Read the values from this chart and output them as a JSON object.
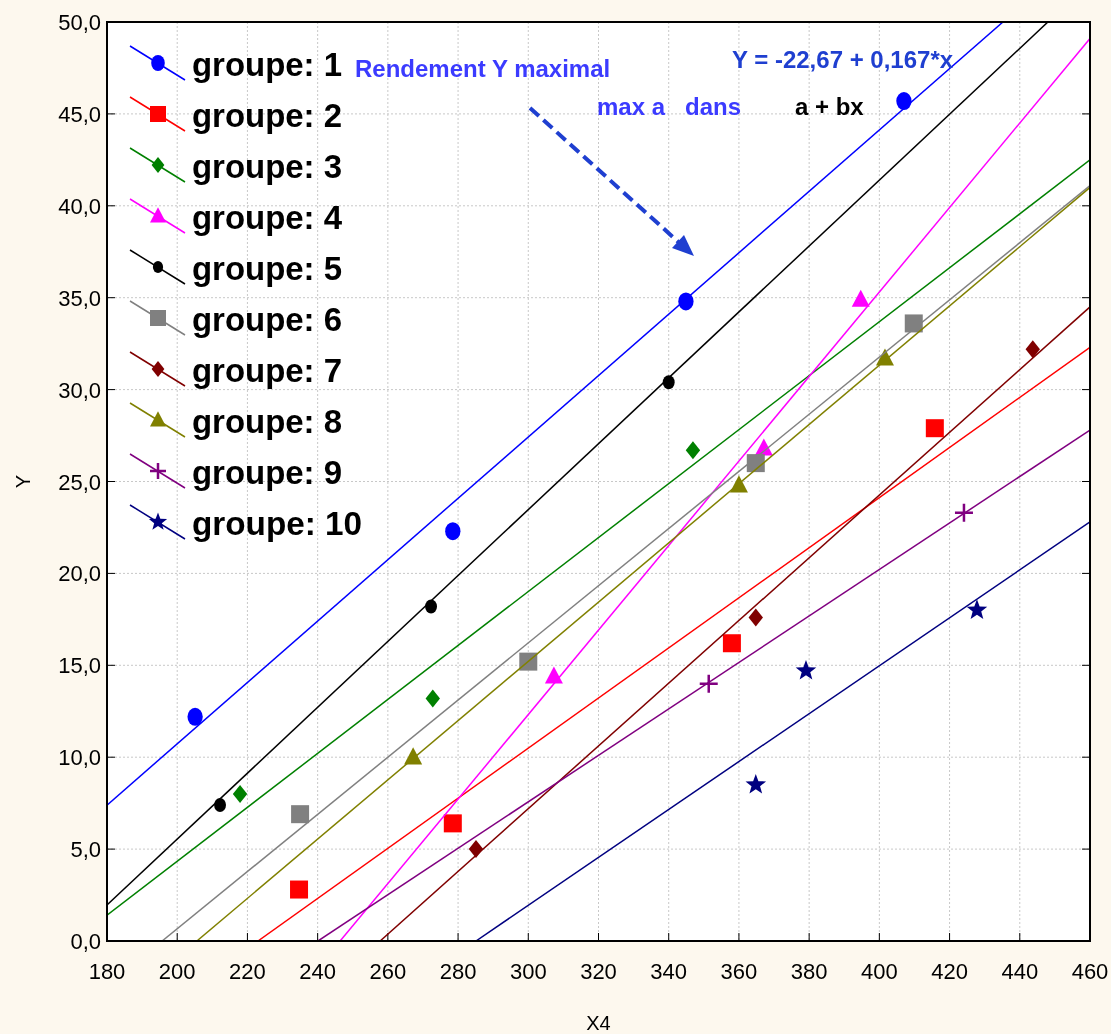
{
  "chart_data": {
    "type": "scatter",
    "xlabel": "X4",
    "ylabel": "Y",
    "xlim": [
      180,
      460
    ],
    "xticks": [
      180,
      200,
      220,
      240,
      260,
      280,
      300,
      320,
      340,
      360,
      380,
      400,
      420,
      440,
      460
    ],
    "ylim": [
      0,
      50
    ],
    "yticks": [
      {
        "value": 0,
        "label": "0,0"
      },
      {
        "value": 5,
        "label": "5,0"
      },
      {
        "value": 10,
        "label": "10,0"
      },
      {
        "value": 15,
        "label": "15,0"
      },
      {
        "value": 20,
        "label": "20,0"
      },
      {
        "value": 25,
        "label": "25,0"
      },
      {
        "value": 30,
        "label": "30,0"
      },
      {
        "value": 35,
        "label": "35,0"
      },
      {
        "value": 40,
        "label": "40,0"
      },
      {
        "value": 45,
        "label": "45,0"
      },
      {
        "value": 50,
        "label": "50,0"
      }
    ],
    "grid": true,
    "legend": "top left",
    "annotations": [
      "Rendement Y maximal",
      "Y = -22,67 + 0,167*x",
      "max a   dans",
      "a + bx"
    ],
    "series": [
      {
        "name": "groupe: 1",
        "color": "#0000ff",
        "marker": "circle",
        "x": [
          205.1,
          278.5,
          344.9,
          407
        ],
        "values": [
          12.2,
          22.3,
          34.8,
          45.7
        ]
      },
      {
        "name": "groupe: 2",
        "color": "#ff0000",
        "marker": "square",
        "x": [
          234.7,
          278.5,
          358,
          415.8
        ],
        "values": [
          2.8,
          6.4,
          16.2,
          27.9
        ]
      },
      {
        "name": "groupe: 3",
        "color": "#008000",
        "marker": "diamond",
        "x": [
          217.9,
          272.8,
          346.9
        ],
        "values": [
          8.0,
          13.2,
          26.7
        ]
      },
      {
        "name": "groupe: 4",
        "color": "#ff00ff",
        "marker": "triangle",
        "x": [
          307.3,
          367.1,
          394.7
        ],
        "values": [
          14.4,
          26.8,
          34.9
        ]
      },
      {
        "name": "groupe: 5",
        "color": "#000000",
        "marker": "circle",
        "x": [
          212.2,
          272.3,
          340
        ],
        "values": [
          7.4,
          18.2,
          30.4
        ]
      },
      {
        "name": "groupe: 6",
        "color": "#808080",
        "marker": "square",
        "x": [
          235,
          300,
          364.8,
          409.8
        ],
        "values": [
          6.9,
          15.2,
          26.0,
          33.6
        ]
      },
      {
        "name": "groupe: 7",
        "color": "#800000",
        "marker": "diamond",
        "x": [
          285.1,
          364.8,
          443.7
        ],
        "values": [
          5.0,
          17.6,
          32.2
        ]
      },
      {
        "name": "groupe: 8",
        "color": "#808000",
        "marker": "triangle",
        "x": [
          267.2,
          360,
          401.6
        ],
        "values": [
          10.0,
          24.8,
          31.7
        ]
      },
      {
        "name": "groupe: 9",
        "color": "#800080",
        "marker": "cross",
        "x": [
          351.4,
          424.1
        ],
        "values": [
          14.0,
          23.3
        ]
      },
      {
        "name": "groupe: 10",
        "color": "#000080",
        "marker": "star",
        "x": [
          364.8,
          379.1,
          427.8
        ],
        "values": [
          8.5,
          14.7,
          18.0
        ]
      },
      {
        "type": "line",
        "color": "#0000ff",
        "x": [
          180,
          435.2
        ],
        "values": [
          7.39,
          50
        ]
      },
      {
        "type": "line",
        "color": "#ff0000",
        "x": [
          223,
          460
        ],
        "values": [
          0,
          32.3
        ]
      },
      {
        "type": "line",
        "color": "#008000",
        "x": [
          180,
          460
        ],
        "values": [
          1.4,
          42.5
        ]
      },
      {
        "type": "line",
        "color": "#ff00ff",
        "x": [
          246.4,
          460
        ],
        "values": [
          0,
          49.1
        ]
      },
      {
        "type": "line",
        "color": "#000000",
        "x": [
          180,
          448
        ],
        "values": [
          1.96,
          50
        ]
      },
      {
        "type": "line",
        "color": "#808080",
        "x": [
          195.7,
          460
        ],
        "values": [
          0,
          41.1
        ]
      },
      {
        "type": "line",
        "color": "#800000",
        "x": [
          257.8,
          460
        ],
        "values": [
          0,
          34.5
        ]
      },
      {
        "type": "line",
        "color": "#808000",
        "x": [
          205.6,
          460
        ],
        "values": [
          0,
          41.0
        ]
      },
      {
        "type": "line",
        "color": "#800080",
        "x": [
          240.1,
          460
        ],
        "values": [
          0,
          27.8
        ]
      },
      {
        "type": "line",
        "color": "#000080",
        "x": [
          285.1,
          460
        ],
        "values": [
          0,
          22.8
        ]
      }
    ]
  }
}
